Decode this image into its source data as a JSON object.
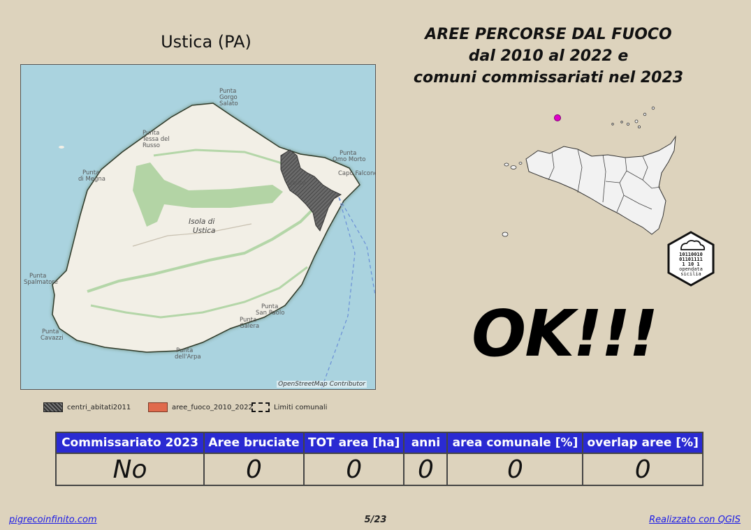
{
  "map": {
    "title": "Ustica (PA)",
    "attribution": "OpenStreetMap Contributor",
    "labels": {
      "punta_gorgo_salato": [
        "Punta",
        "Gorgo",
        "Salato"
      ],
      "punta_tessa_del_russo": [
        "Punta",
        "Tessa del",
        "Russo"
      ],
      "punta_di_megna": [
        "Punta",
        "di Megna"
      ],
      "punta_spalmatore": [
        "Punta",
        "Spalmatore"
      ],
      "punta_cavazzi": [
        "Punta",
        "Cavazzi"
      ],
      "punta_dell_arpa": [
        "Punta",
        "dell'Arpa"
      ],
      "punta_galera": [
        "Punta",
        "Galera"
      ],
      "punta_san_paolo": [
        "Punta",
        "San Paolo"
      ],
      "capo_falcone": "Capo Falcone",
      "omo_morto": [
        "Punta",
        "Omo Morto"
      ],
      "town": "Ustica",
      "isola": [
        "Isola di",
        "Ustica"
      ]
    }
  },
  "header": {
    "title_lines": [
      "AREE PERCORSE DAL FUOCO",
      "dal 2010 al 2022 e",
      "comuni commissariati nel 2023"
    ]
  },
  "legend": {
    "centri": "centri_abitati2011",
    "aree": "aree_fuoco_2010_2022",
    "limiti": "Limiti comunali",
    "colors": {
      "centri": "#555555",
      "aree": "#e06a4c"
    }
  },
  "status": {
    "text": "OK!!!"
  },
  "logo": {
    "binary": [
      "10110010",
      "01101111",
      "1   10 1"
    ],
    "name": [
      "opendata",
      "sicilia"
    ]
  },
  "locator": {
    "marker_color": "#e000c8"
  },
  "table": {
    "headers": [
      "Commissariato 2023",
      "Aree bruciate",
      "TOT area [ha]",
      "anni",
      "area comunale [%]",
      "overlap aree [%]"
    ],
    "values": [
      "No",
      "0",
      "0",
      "0",
      "0",
      "0"
    ],
    "header_color": "#2a2ad2"
  },
  "footer": {
    "left": "pigrecoinfinito.com",
    "page": "5/23",
    "right": "Realizzato con QGIS"
  }
}
